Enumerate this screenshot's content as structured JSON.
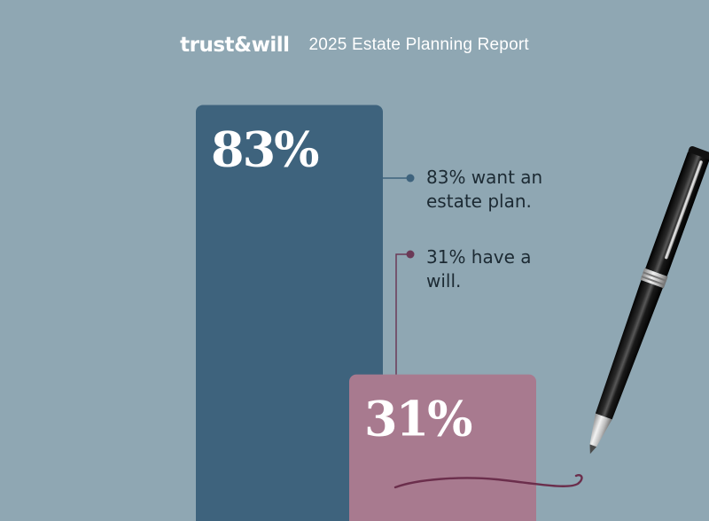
{
  "header": {
    "brand": "trust&will",
    "report_title": "2025 Estate Planning Report"
  },
  "chart_data": {
    "type": "bar",
    "categories": [
      "Want an estate plan",
      "Have a will"
    ],
    "values": [
      83,
      31
    ],
    "unit": "%",
    "ylim": [
      0,
      100
    ],
    "bar_labels": [
      "83%",
      "31%"
    ],
    "colors": [
      "#3e637d",
      "#a87a8f"
    ],
    "annotations": [
      "83% want an estate plan.",
      "31% have a will."
    ],
    "annotation_colors": [
      "#3e637d",
      "#6b3a57"
    ]
  },
  "decor": {
    "pen_icon": "ballpoint-pen-icon"
  }
}
